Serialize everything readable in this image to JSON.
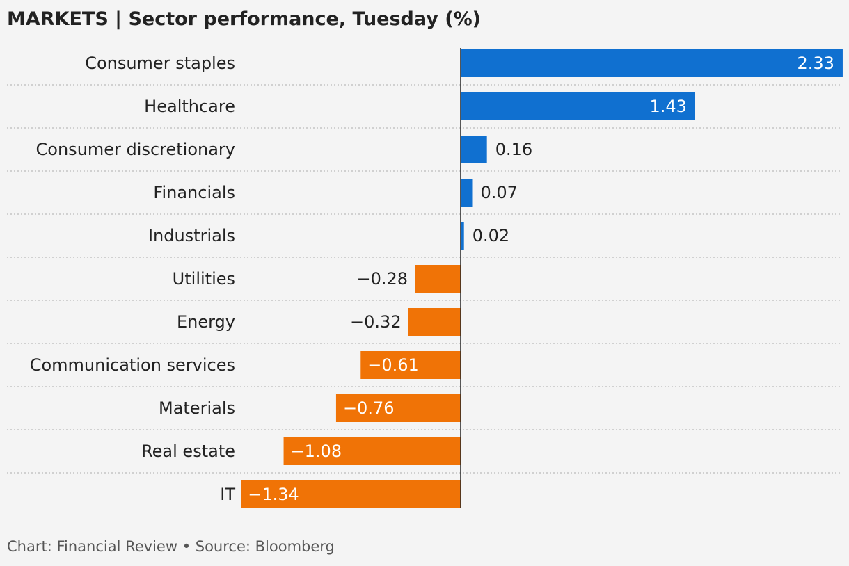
{
  "title": "MARKETS | Sector performance, Tuesday (%)",
  "footer": "Chart: Financial Review • Source: Bloomberg",
  "colors": {
    "positive": "#1070d0",
    "negative": "#f07306",
    "background": "#f4f4f4",
    "axis": "#222222",
    "gridline": "#bbbbbb"
  },
  "chart_data": {
    "type": "bar",
    "orientation": "horizontal",
    "categories": [
      "Consumer staples",
      "Healthcare",
      "Consumer discretionary",
      "Financials",
      "Industrials",
      "Utilities",
      "Energy",
      "Communication services",
      "Materials",
      "Real estate",
      "IT"
    ],
    "values": [
      2.33,
      1.43,
      0.16,
      0.07,
      0.02,
      -0.28,
      -0.32,
      -0.61,
      -0.76,
      -1.08,
      -1.34
    ],
    "value_labels": [
      "2.33",
      "1.43",
      "0.16",
      "0.07",
      "0.02",
      "−0.28",
      "−0.32",
      "−0.61",
      "−0.76",
      "−1.08",
      "−1.34"
    ],
    "title": "MARKETS | Sector performance, Tuesday (%)",
    "xlabel": "",
    "ylabel": "",
    "xlim": [
      -1.34,
      2.33
    ],
    "grid": false
  }
}
